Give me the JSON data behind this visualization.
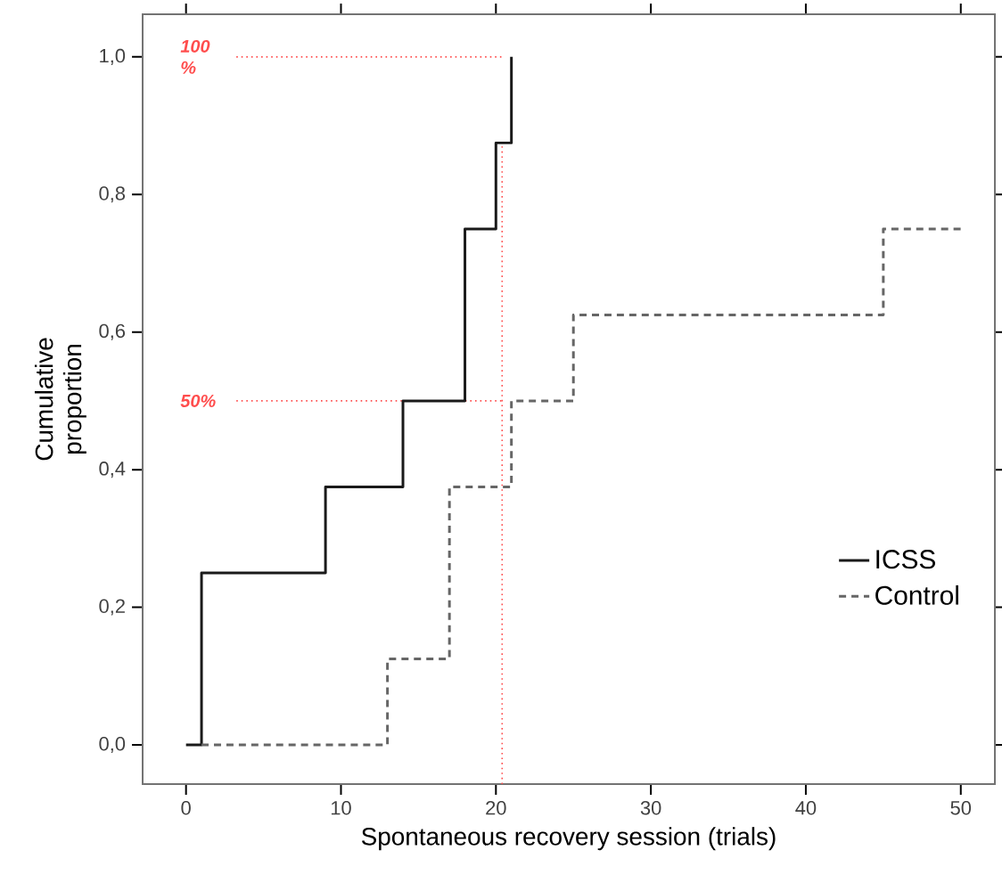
{
  "chart_data": {
    "type": "step",
    "xlabel": "Spontaneous recovery session (trials)",
    "ylabel": "Cumulative proportion",
    "xlim": [
      -2.8,
      52.2
    ],
    "ylim": [
      -0.057,
      1.062
    ],
    "xticks": [
      0,
      10,
      20,
      30,
      40,
      50
    ],
    "yticks": [
      {
        "value": 0,
        "label": "0,0"
      },
      {
        "value": 0.2,
        "label": "0,2"
      },
      {
        "value": 0.4,
        "label": "0,4"
      },
      {
        "value": 0.6,
        "label": "0,6"
      },
      {
        "value": 0.8,
        "label": "0,8"
      },
      {
        "value": 1.0,
        "label": "1,0"
      }
    ],
    "grid": false,
    "legend": "bottom right",
    "series": [
      {
        "name": "ICSS",
        "color": "#1a1a1a",
        "line_style": "solid",
        "x": [
          0,
          1,
          9,
          14,
          18,
          20,
          21
        ],
        "values": [
          0,
          0.25,
          0.375,
          0.5,
          0.75,
          0.875,
          1.0
        ]
      },
      {
        "name": "Control",
        "color": "#666666",
        "line_style": "dashed",
        "x": [
          1,
          13,
          17,
          21,
          25,
          45,
          50
        ],
        "values": [
          0,
          0.125,
          0.375,
          0.5,
          0.625,
          0.75,
          0.75
        ]
      }
    ],
    "ref_lines": [
      {
        "axis": "x",
        "value": 20.4,
        "color": "#ff4d4d",
        "line_style": "dotted"
      },
      {
        "axis": "y",
        "value": 1.0,
        "label": "100 %",
        "color": "#ff4d4d",
        "line_style": "dotted"
      },
      {
        "axis": "y",
        "value": 0.5,
        "label": "50%",
        "color": "#ff4d4d",
        "line_style": "dotted"
      }
    ]
  }
}
